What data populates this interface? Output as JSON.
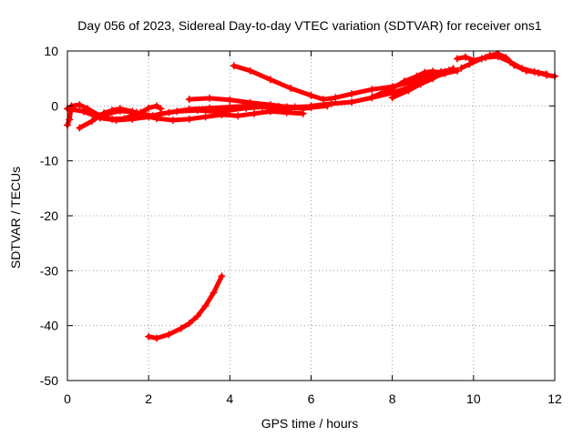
{
  "chart_data": {
    "type": "scatter",
    "title": "Day 056 of 2023, Sidereal Day-to-day VTEC variation (SDTVAR) for receiver ons1",
    "xlabel": "GPS time / hours",
    "ylabel": "SDTVAR / TECUs",
    "xlim": [
      0,
      12
    ],
    "ylim": [
      -50,
      10
    ],
    "xticks": [
      0,
      2,
      4,
      6,
      8,
      10,
      12
    ],
    "yticks": [
      10,
      0,
      -10,
      -20,
      -30,
      -40,
      -50
    ],
    "grid": true,
    "marker_color": "#ff0000",
    "series": [
      {
        "points": [
          [
            0.0,
            -3.5
          ],
          [
            0.05,
            -2.5
          ],
          [
            0.1,
            0.0
          ],
          [
            0.3,
            0.2
          ],
          [
            0.5,
            -0.5
          ],
          [
            0.8,
            -1.8
          ],
          [
            1.1,
            -2.4
          ],
          [
            1.4,
            -2.3
          ],
          [
            1.8,
            -1.2
          ],
          [
            2.0,
            -0.4
          ],
          [
            2.2,
            0.0
          ],
          [
            2.3,
            -0.5
          ]
        ]
      },
      {
        "points": [
          [
            0.3,
            -4.0
          ],
          [
            0.6,
            -2.8
          ],
          [
            0.9,
            -1.3
          ],
          [
            1.1,
            -0.8
          ],
          [
            1.3,
            -0.5
          ],
          [
            1.6,
            -1.0
          ],
          [
            1.9,
            -1.8
          ],
          [
            2.2,
            -2.3
          ],
          [
            2.6,
            -2.6
          ],
          [
            3.0,
            -2.4
          ],
          [
            3.4,
            -2.0
          ],
          [
            3.8,
            -1.6
          ],
          [
            4.2,
            -1.8
          ],
          [
            4.6,
            -1.4
          ],
          [
            5.0,
            -1.0
          ],
          [
            5.4,
            -1.2
          ],
          [
            5.8,
            -1.4
          ]
        ]
      },
      {
        "points": [
          [
            0.0,
            -0.5
          ],
          [
            0.4,
            -1.0
          ],
          [
            0.8,
            -2.2
          ],
          [
            1.2,
            -2.6
          ],
          [
            1.6,
            -2.4
          ],
          [
            2.0,
            -2.0
          ],
          [
            2.3,
            -1.4
          ],
          [
            2.7,
            -1.0
          ],
          [
            3.2,
            -0.8
          ],
          [
            3.6,
            -1.0
          ],
          [
            4.0,
            -0.8
          ],
          [
            4.4,
            -0.4
          ],
          [
            4.8,
            -0.2
          ],
          [
            5.2,
            -0.1
          ],
          [
            5.6,
            -0.2
          ],
          [
            6.0,
            -0.1
          ]
        ]
      },
      {
        "points": [
          [
            0.9,
            -1.6
          ],
          [
            1.3,
            -0.9
          ],
          [
            1.7,
            -1.2
          ],
          [
            2.1,
            -1.8
          ],
          [
            2.5,
            -1.2
          ],
          [
            3.0,
            -0.6
          ],
          [
            3.5,
            -0.4
          ],
          [
            4.0,
            -0.2
          ],
          [
            4.5,
            0.0
          ],
          [
            5.0,
            -0.3
          ],
          [
            5.5,
            -0.6
          ]
        ]
      },
      {
        "points": [
          [
            3.0,
            1.2
          ],
          [
            3.5,
            1.4
          ],
          [
            4.0,
            1.1
          ],
          [
            4.5,
            0.6
          ],
          [
            5.0,
            0.2
          ],
          [
            5.4,
            -0.2
          ],
          [
            5.8,
            -0.5
          ],
          [
            6.0,
            -0.3
          ],
          [
            6.4,
            0.0
          ]
        ]
      },
      {
        "points": [
          [
            4.1,
            7.3
          ],
          [
            4.5,
            6.4
          ],
          [
            5.0,
            4.8
          ],
          [
            5.5,
            3.2
          ],
          [
            6.0,
            1.9
          ],
          [
            6.3,
            1.2
          ],
          [
            6.6,
            1.5
          ],
          [
            7.0,
            2.2
          ],
          [
            7.5,
            3.0
          ],
          [
            8.0,
            3.5
          ],
          [
            8.4,
            4.2
          ],
          [
            8.8,
            5.3
          ],
          [
            9.0,
            6.0
          ],
          [
            9.2,
            6.2
          ],
          [
            9.4,
            6.5
          ]
        ]
      },
      {
        "points": [
          [
            6.0,
            0.0
          ],
          [
            6.5,
            0.4
          ],
          [
            7.0,
            0.7
          ],
          [
            7.5,
            1.5
          ],
          [
            8.0,
            2.4
          ],
          [
            8.5,
            3.6
          ],
          [
            9.0,
            5.2
          ],
          [
            9.3,
            5.9
          ],
          [
            9.6,
            6.4
          ]
        ]
      },
      {
        "points": [
          [
            7.5,
            1.6
          ],
          [
            8.0,
            3.2
          ],
          [
            8.3,
            4.5
          ],
          [
            8.6,
            5.4
          ],
          [
            8.8,
            6.1
          ],
          [
            9.0,
            6.3
          ],
          [
            9.2,
            6.0
          ]
        ]
      },
      {
        "points": [
          [
            8.0,
            1.5
          ],
          [
            8.4,
            2.8
          ],
          [
            8.7,
            4.0
          ],
          [
            9.0,
            5.0
          ],
          [
            9.3,
            6.2
          ],
          [
            9.5,
            6.8
          ]
        ]
      },
      {
        "points": [
          [
            9.7,
            6.9
          ],
          [
            9.9,
            7.6
          ],
          [
            10.2,
            8.6
          ],
          [
            10.4,
            9.2
          ],
          [
            10.6,
            9.5
          ],
          [
            10.8,
            8.8
          ],
          [
            11.0,
            7.4
          ],
          [
            11.3,
            6.4
          ],
          [
            11.6,
            6.0
          ],
          [
            11.8,
            5.6
          ],
          [
            12.0,
            5.4
          ]
        ]
      },
      {
        "points": [
          [
            9.6,
            8.6
          ],
          [
            9.8,
            8.9
          ],
          [
            10.0,
            8.3
          ],
          [
            10.3,
            8.8
          ],
          [
            10.6,
            9.0
          ],
          [
            10.9,
            8.0
          ],
          [
            11.2,
            6.8
          ],
          [
            11.5,
            6.2
          ],
          [
            11.8,
            5.8
          ]
        ]
      },
      {
        "points": [
          [
            2.0,
            -42.0
          ],
          [
            2.2,
            -42.3
          ],
          [
            2.5,
            -41.6
          ],
          [
            2.8,
            -40.5
          ],
          [
            3.0,
            -39.6
          ],
          [
            3.2,
            -38.3
          ],
          [
            3.4,
            -36.4
          ],
          [
            3.6,
            -34.0
          ],
          [
            3.8,
            -31.0
          ]
        ]
      }
    ]
  }
}
